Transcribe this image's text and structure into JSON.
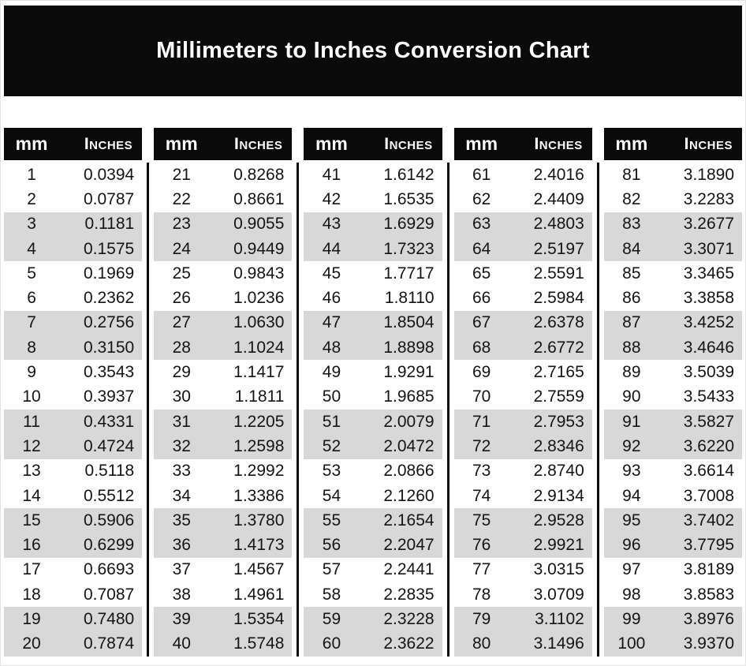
{
  "banner": {
    "title": "Millimeters to Inches Conversion Chart"
  },
  "colors": {
    "banner_bg": "#0a0a0a",
    "header_bg": "#0a0a0a",
    "header_text": "#ffffff",
    "stripe_gray": "#d8d8d8",
    "row_white": "#ffffff",
    "body_text": "#141414",
    "divider": "#0d0d0d",
    "page_bg": "#ffffff"
  },
  "chart_data": {
    "type": "table",
    "title": "Millimeters to Inches Conversion Chart",
    "column_headers": [
      "mm",
      "Inches"
    ],
    "layout": {
      "table_count": 5,
      "rows_per_table": 20,
      "stripe_pair_size": 2,
      "stripe_pattern": "pairs of rows alternate white then gray, starting white",
      "grid": "off",
      "dividers": "vertical black line between each table, spanning data rows only"
    },
    "rows": [
      [
        "1",
        "0.0394"
      ],
      [
        "2",
        "0.0787"
      ],
      [
        "3",
        "0.1181"
      ],
      [
        "4",
        "0.1575"
      ],
      [
        "5",
        "0.1969"
      ],
      [
        "6",
        "0.2362"
      ],
      [
        "7",
        "0.2756"
      ],
      [
        "8",
        "0.3150"
      ],
      [
        "9",
        "0.3543"
      ],
      [
        "10",
        "0.3937"
      ],
      [
        "11",
        "0.4331"
      ],
      [
        "12",
        "0.4724"
      ],
      [
        "13",
        "0.5118"
      ],
      [
        "14",
        "0.5512"
      ],
      [
        "15",
        "0.5906"
      ],
      [
        "16",
        "0.6299"
      ],
      [
        "17",
        "0.6693"
      ],
      [
        "18",
        "0.7087"
      ],
      [
        "19",
        "0.7480"
      ],
      [
        "20",
        "0.7874"
      ],
      [
        "21",
        "0.8268"
      ],
      [
        "22",
        "0.8661"
      ],
      [
        "23",
        "0.9055"
      ],
      [
        "24",
        "0.9449"
      ],
      [
        "25",
        "0.9843"
      ],
      [
        "26",
        "1.0236"
      ],
      [
        "27",
        "1.0630"
      ],
      [
        "28",
        "1.1024"
      ],
      [
        "29",
        "1.1417"
      ],
      [
        "30",
        "1.1811"
      ],
      [
        "31",
        "1.2205"
      ],
      [
        "32",
        "1.2598"
      ],
      [
        "33",
        "1.2992"
      ],
      [
        "34",
        "1.3386"
      ],
      [
        "35",
        "1.3780"
      ],
      [
        "36",
        "1.4173"
      ],
      [
        "37",
        "1.4567"
      ],
      [
        "38",
        "1.4961"
      ],
      [
        "39",
        "1.5354"
      ],
      [
        "40",
        "1.5748"
      ],
      [
        "41",
        "1.6142"
      ],
      [
        "42",
        "1.6535"
      ],
      [
        "43",
        "1.6929"
      ],
      [
        "44",
        "1.7323"
      ],
      [
        "45",
        "1.7717"
      ],
      [
        "46",
        "1.8110"
      ],
      [
        "47",
        "1.8504"
      ],
      [
        "48",
        "1.8898"
      ],
      [
        "49",
        "1.9291"
      ],
      [
        "50",
        "1.9685"
      ],
      [
        "51",
        "2.0079"
      ],
      [
        "52",
        "2.0472"
      ],
      [
        "53",
        "2.0866"
      ],
      [
        "54",
        "2.1260"
      ],
      [
        "55",
        "2.1654"
      ],
      [
        "56",
        "2.2047"
      ],
      [
        "57",
        "2.2441"
      ],
      [
        "58",
        "2.2835"
      ],
      [
        "59",
        "2.3228"
      ],
      [
        "60",
        "2.3622"
      ],
      [
        "61",
        "2.4016"
      ],
      [
        "62",
        "2.4409"
      ],
      [
        "63",
        "2.4803"
      ],
      [
        "64",
        "2.5197"
      ],
      [
        "65",
        "2.5591"
      ],
      [
        "66",
        "2.5984"
      ],
      [
        "67",
        "2.6378"
      ],
      [
        "68",
        "2.6772"
      ],
      [
        "69",
        "2.7165"
      ],
      [
        "70",
        "2.7559"
      ],
      [
        "71",
        "2.7953"
      ],
      [
        "72",
        "2.8346"
      ],
      [
        "73",
        "2.8740"
      ],
      [
        "74",
        "2.9134"
      ],
      [
        "75",
        "2.9528"
      ],
      [
        "76",
        "2.9921"
      ],
      [
        "77",
        "3.0315"
      ],
      [
        "78",
        "3.0709"
      ],
      [
        "79",
        "3.1102"
      ],
      [
        "80",
        "3.1496"
      ],
      [
        "81",
        "3.1890"
      ],
      [
        "82",
        "3.2283"
      ],
      [
        "83",
        "3.2677"
      ],
      [
        "84",
        "3.3071"
      ],
      [
        "85",
        "3.3465"
      ],
      [
        "86",
        "3.3858"
      ],
      [
        "87",
        "3.4252"
      ],
      [
        "88",
        "3.4646"
      ],
      [
        "89",
        "3.5039"
      ],
      [
        "90",
        "3.5433"
      ],
      [
        "91",
        "3.5827"
      ],
      [
        "92",
        "3.6220"
      ],
      [
        "93",
        "3.6614"
      ],
      [
        "94",
        "3.7008"
      ],
      [
        "95",
        "3.7402"
      ],
      [
        "96",
        "3.7795"
      ],
      [
        "97",
        "3.8189"
      ],
      [
        "98",
        "3.8583"
      ],
      [
        "99",
        "3.8976"
      ],
      [
        "100",
        "3.9370"
      ]
    ]
  }
}
